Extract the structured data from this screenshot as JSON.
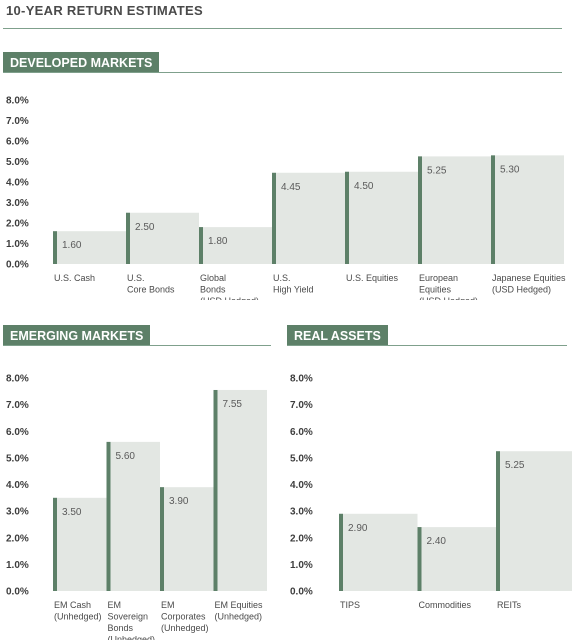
{
  "title": "10-YEAR RETURN ESTIMATES",
  "colors": {
    "bar_fill": "#e3e7e3",
    "bar_accent": "#5d8068",
    "header_bg": "#5d8068",
    "text": "#4a4a4a"
  },
  "chart_data": [
    {
      "type": "bar",
      "title": "DEVELOPED MARKETS",
      "yticks": [
        "8.0%",
        "7.0%",
        "6.0%",
        "5.0%",
        "4.0%",
        "3.0%",
        "2.0%",
        "1.0%",
        "0.0%"
      ],
      "ylim": [
        0,
        8
      ],
      "categories": [
        [
          "U.S. Cash"
        ],
        [
          "U.S.",
          "Core Bonds"
        ],
        [
          "Global",
          "Bonds",
          "(USD Hedged)"
        ],
        [
          "U.S.",
          "High Yield"
        ],
        [
          "U.S. Equities"
        ],
        [
          "European",
          "Equities",
          "(USD Hedged)"
        ],
        [
          "Japanese Equities",
          "(USD Hedged)"
        ]
      ],
      "values": [
        1.6,
        2.5,
        1.8,
        4.45,
        4.5,
        5.25,
        5.3
      ],
      "labels": [
        "1.60",
        "2.50",
        "1.80",
        "4.45",
        "4.50",
        "5.25",
        "5.30"
      ]
    },
    {
      "type": "bar",
      "title": "EMERGING MARKETS",
      "yticks": [
        "8.0%",
        "7.0%",
        "6.0%",
        "5.0%",
        "4.0%",
        "3.0%",
        "2.0%",
        "1.0%",
        "0.0%"
      ],
      "ylim": [
        0,
        8
      ],
      "categories": [
        [
          "EM Cash",
          "(Unhedged)"
        ],
        [
          "EM",
          "Sovereign",
          "Bonds",
          "(Unhedged)"
        ],
        [
          "EM",
          "Corporates",
          "(Unhedged)"
        ],
        [
          "EM Equities",
          "(Unhedged)"
        ]
      ],
      "values": [
        3.5,
        5.6,
        3.9,
        7.55
      ],
      "labels": [
        "3.50",
        "5.60",
        "3.90",
        "7.55"
      ]
    },
    {
      "type": "bar",
      "title": "REAL ASSETS",
      "yticks": [
        "8.0%",
        "7.0%",
        "6.0%",
        "5.0%",
        "4.0%",
        "3.0%",
        "2.0%",
        "1.0%",
        "0.0%"
      ],
      "ylim": [
        0,
        8
      ],
      "categories": [
        [
          "TIPS"
        ],
        [
          "Commodities"
        ],
        [
          "REITs"
        ]
      ],
      "values": [
        2.9,
        2.4,
        5.25
      ],
      "labels": [
        "2.90",
        "2.40",
        "5.25"
      ]
    }
  ]
}
